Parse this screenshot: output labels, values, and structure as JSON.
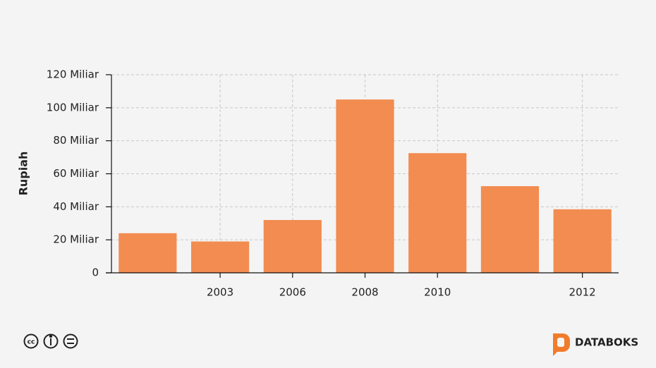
{
  "chart_data": {
    "type": "bar",
    "y_label": "Rupiah",
    "categories": [
      null,
      "2003",
      "2006",
      "2008",
      "2010",
      null,
      "2012"
    ],
    "values": [
      24000000000,
      19000000000,
      32000000000,
      105000000000,
      72500000000,
      52500000000,
      38500000000
    ],
    "color": "#f28c50",
    "ylim": [
      0,
      120000000000
    ],
    "yticks": [
      0,
      {
        "value": 20000000000,
        "label": "20 Miliar"
      },
      {
        "value": 40000000000,
        "label": "40 Miliar"
      },
      {
        "value": 60000000000,
        "label": "60 Miliar"
      },
      {
        "value": 80000000000,
        "label": "80 Miliar"
      },
      {
        "value": 100000000000,
        "label": "100 Miliar"
      },
      {
        "value": 120000000000,
        "label": "120 Miliar"
      }
    ],
    "grid": true
  },
  "brand": "DATABOKS"
}
